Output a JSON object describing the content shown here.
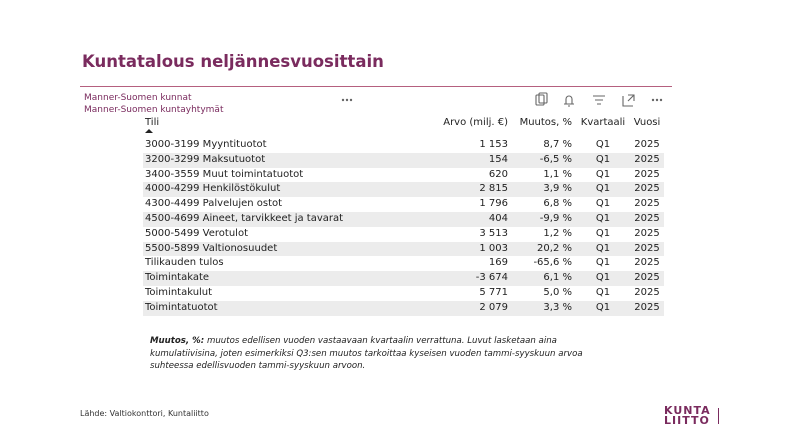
{
  "header": {
    "title": "Kuntatalous neljännesvuosittain",
    "filters": [
      "Manner-Suomen kunnat",
      "Manner-Suomen kuntayhtymät"
    ]
  },
  "table": {
    "columns": [
      "Tili",
      "Arvo (milj. €)",
      "Muutos, %",
      "Kvartaali",
      "Vuosi"
    ],
    "rows": [
      [
        "3000-3199 Myyntituotot",
        "1 153",
        "8,7 %",
        "Q1",
        "2025"
      ],
      [
        "3200-3299 Maksutuotot",
        "154",
        "-6,5 %",
        "Q1",
        "2025"
      ],
      [
        "3400-3559 Muut toimintatuotot",
        "620",
        "1,1 %",
        "Q1",
        "2025"
      ],
      [
        "4000-4299 Henkilöstökulut",
        "2 815",
        "3,9 %",
        "Q1",
        "2025"
      ],
      [
        "4300-4499 Palvelujen ostot",
        "1 796",
        "6,8 %",
        "Q1",
        "2025"
      ],
      [
        "4500-4699 Aineet, tarvikkeet ja tavarat",
        "404",
        "-9,9 %",
        "Q1",
        "2025"
      ],
      [
        "5000-5499 Verotulot",
        "3 513",
        "1,2 %",
        "Q1",
        "2025"
      ],
      [
        "5500-5899 Valtionosuudet",
        "1 003",
        "20,2 %",
        "Q1",
        "2025"
      ],
      [
        "Tilikauden tulos",
        "169",
        "-65,6 %",
        "Q1",
        "2025"
      ],
      [
        "Toimintakate",
        "-3 674",
        "6,1 %",
        "Q1",
        "2025"
      ],
      [
        "Toimintakulut",
        "5 771",
        "5,0 %",
        "Q1",
        "2025"
      ],
      [
        "Toimintatuotot",
        "2 079",
        "3,3 %",
        "Q1",
        "2025"
      ]
    ]
  },
  "footnote": {
    "label": "Muutos, %:",
    "lines": [
      "muutos edellisen vuoden vastaavaan kvartaalin verrattuna. Luvut lasketaan aina",
      "kumulatiivisina, joten esimerkiksi Q3:sen muutos tarkoittaa kyseisen vuoden tammi-syyskuun arvoa",
      "suhteessa edellisvuoden tammi-syyskuun arvoon."
    ]
  },
  "source": "Lähde: Valtiokonttori, Kuntaliitto",
  "logo": [
    "KUNTA",
    "LIITTO"
  ]
}
